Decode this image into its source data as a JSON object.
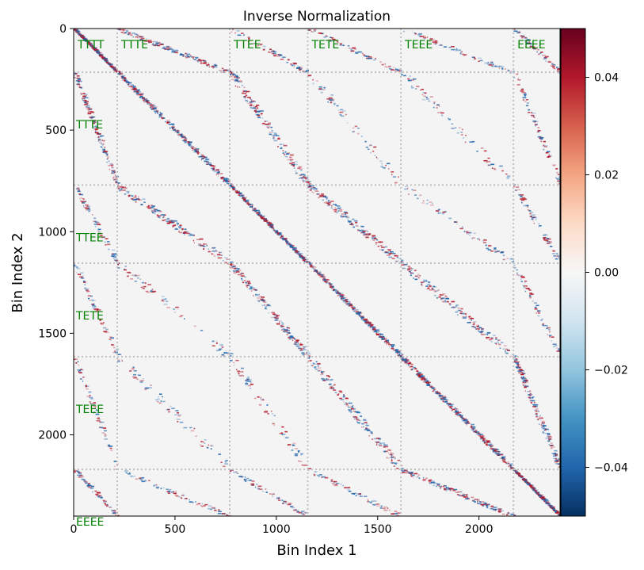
{
  "chart_data": {
    "type": "heatmap",
    "title": "Inverse Normalization",
    "xlabel": "Bin Index 1",
    "ylabel": "Bin Index 2",
    "x_range": [
      0,
      2400
    ],
    "y_range": [
      0,
      2400
    ],
    "y_inverted": true,
    "x_ticks": [
      0,
      500,
      1000,
      1500,
      2000
    ],
    "x_tick_labels": [
      "0",
      "500",
      "1000",
      "1500",
      "2000"
    ],
    "y_ticks": [
      0,
      500,
      1000,
      1500,
      2000
    ],
    "y_tick_labels": [
      "0",
      "500",
      "1000",
      "1500",
      "2000"
    ],
    "colormap": "RdBu_r",
    "color_range": [
      -0.05,
      0.05
    ],
    "colorbar_ticks": [
      0.04,
      0.02,
      0.0,
      -0.02,
      -0.04
    ],
    "colorbar_tick_labels": [
      "0.04",
      "0.02",
      "0.00",
      "−0.02",
      "−0.04"
    ],
    "block_boundaries": [
      215,
      770,
      1155,
      1615,
      2170
    ],
    "blocks": [
      {
        "name": "TTTT",
        "start": 0,
        "end": 215
      },
      {
        "name": "TTTE",
        "start": 215,
        "end": 770
      },
      {
        "name": "TTEE",
        "start": 770,
        "end": 1155
      },
      {
        "name": "TETE",
        "start": 1155,
        "end": 1615
      },
      {
        "name": "TEEE",
        "start": 1615,
        "end": 2170
      },
      {
        "name": "EEEE",
        "start": 2170,
        "end": 2400
      }
    ],
    "grid": "dotted block boundaries",
    "colors": {
      "background": "#f4f4f4",
      "block_label": "#008000",
      "boundary": "#c0c0c0",
      "positive": "#b2182b",
      "negative": "#2166ac"
    }
  }
}
